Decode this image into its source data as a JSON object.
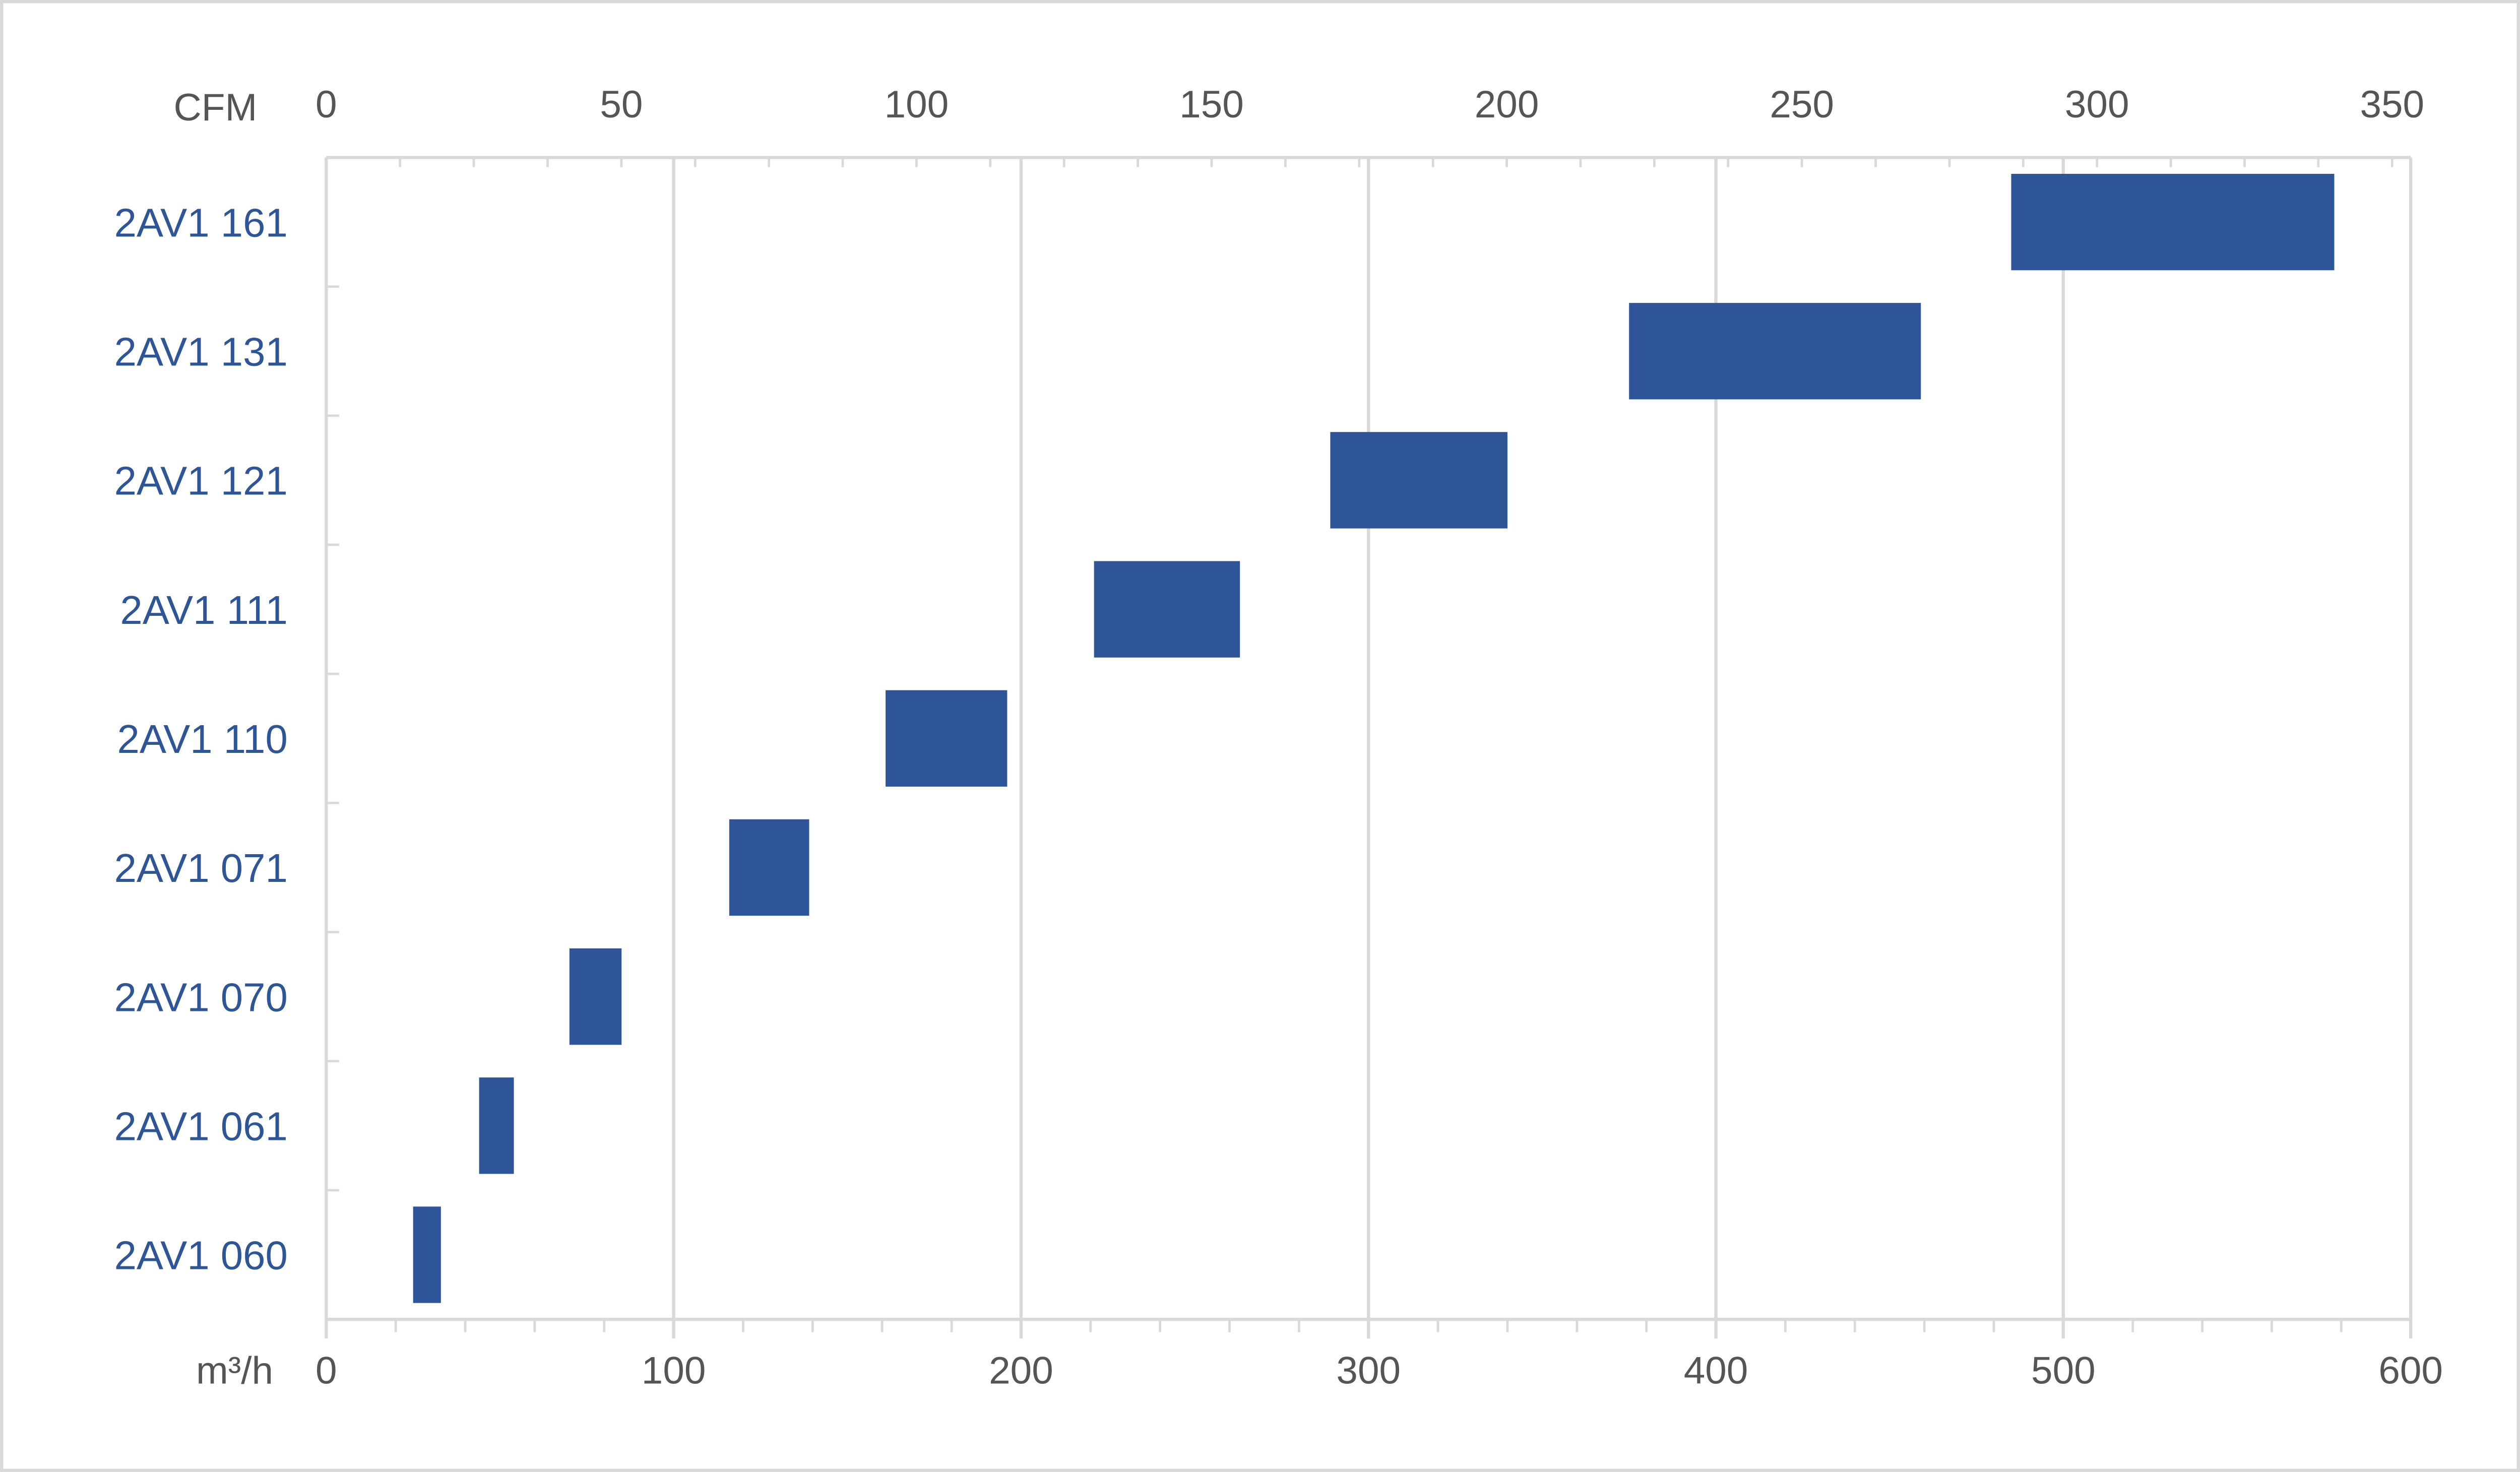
{
  "chart_data": {
    "type": "bar",
    "orientation": "horizontal-range",
    "categories": [
      "2AV1 161",
      "2AV1 131",
      "2AV1 121",
      "2AV1 111",
      "2AV1 110",
      "2AV1 071",
      "2AV1 070",
      "2AV1 061",
      "2AV1 060"
    ],
    "series": [
      {
        "ranges": [
          [
            485,
            578
          ],
          [
            375,
            459
          ],
          [
            289,
            340
          ],
          [
            221,
            263
          ],
          [
            161,
            196
          ],
          [
            116,
            139
          ],
          [
            70,
            85
          ],
          [
            44,
            54
          ],
          [
            25,
            33
          ]
        ]
      }
    ],
    "xaxis_bottom": {
      "label": "m³/h",
      "range": [
        0,
        600
      ],
      "ticks": [
        "0",
        "100",
        "200",
        "300",
        "400",
        "500",
        "600"
      ]
    },
    "xaxis_top": {
      "label": "CFM",
      "range": [
        0,
        353.1
      ],
      "ticks": [
        "0",
        "50",
        "100",
        "150",
        "200",
        "250",
        "300",
        "350"
      ]
    },
    "grid": true,
    "bar_color": "#2e5597"
  }
}
